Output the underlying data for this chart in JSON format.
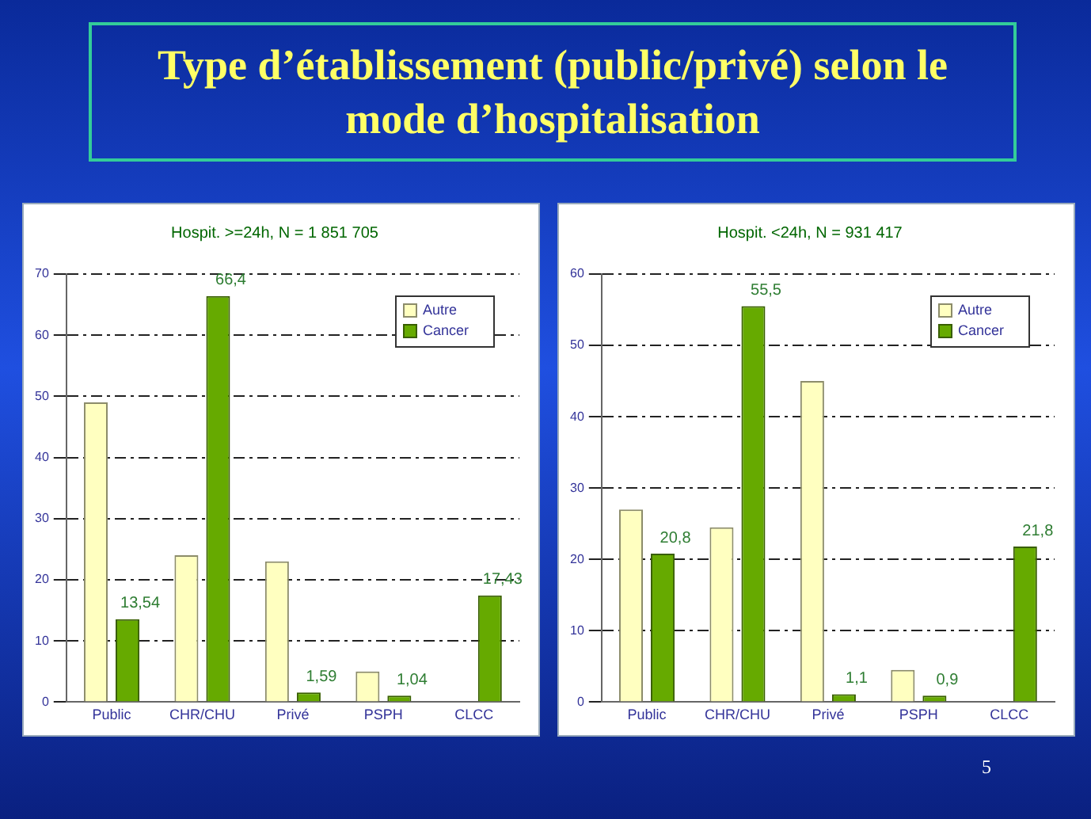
{
  "chart_data": [
    {
      "type": "bar",
      "title": "Type d’établissement (public/privé) selon le mode d’hospitalisation",
      "subtitle": "Hospit. >=24h, N = 1 851 705",
      "categories": [
        "Public",
        "CHR/CHU",
        "Privé",
        "PSPH",
        "CLCC"
      ],
      "series": [
        {
          "name": "Autre",
          "color": "#ffffc0",
          "values": [
            49,
            24,
            23,
            5,
            0
          ]
        },
        {
          "name": "Cancer",
          "color": "#66aa00",
          "values": [
            13.54,
            66.4,
            1.59,
            1.04,
            17.43
          ],
          "value_labels": [
            "13,54",
            "66,4",
            "1,59",
            "1,04",
            "17,43"
          ]
        }
      ],
      "ylim": [
        0,
        70
      ],
      "yticks": [
        0,
        10,
        20,
        30,
        40,
        50,
        60,
        70
      ],
      "grid": "y",
      "legend": "top right"
    },
    {
      "type": "bar",
      "subtitle": "Hospit. <24h, N = 931 417",
      "categories": [
        "Public",
        "CHR/CHU",
        "Privé",
        "PSPH",
        "CLCC"
      ],
      "series": [
        {
          "name": "Autre",
          "color": "#ffffc0",
          "values": [
            27,
            24.5,
            45,
            4.5,
            0
          ]
        },
        {
          "name": "Cancer",
          "color": "#66aa00",
          "values": [
            20.8,
            55.5,
            1.1,
            0.9,
            21.8
          ],
          "value_labels": [
            "20,8",
            "55,5",
            "1,1",
            "0,9",
            "21,8"
          ]
        }
      ],
      "ylim": [
        0,
        60
      ],
      "yticks": [
        0,
        10,
        20,
        30,
        40,
        50,
        60
      ],
      "grid": "y",
      "legend": "top right",
      "annotations": [
        "5"
      ]
    }
  ]
}
